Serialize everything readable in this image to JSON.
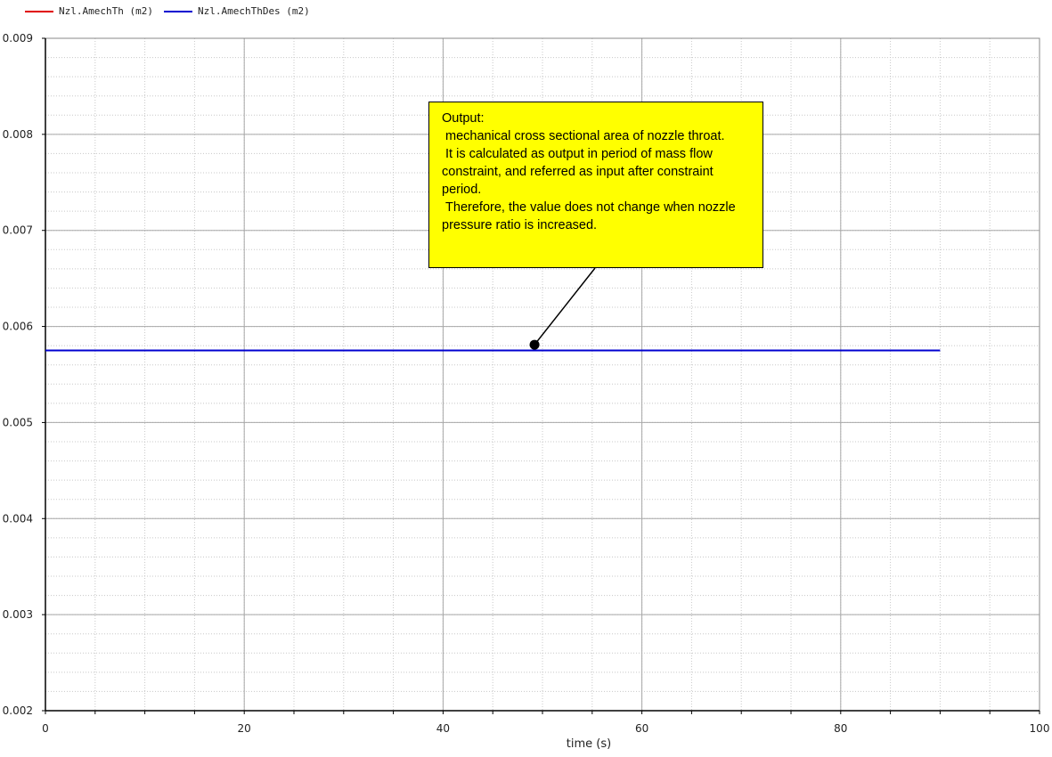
{
  "legend": [
    {
      "label": "Nzl.AmechTh (m2)",
      "color": "#e00000"
    },
    {
      "label": "Nzl.AmechThDes (m2)",
      "color": "#0000d0"
    }
  ],
  "annotation": {
    "text": "Output:\n mechanical cross sectional area of nozzle throat.\n It is calculated as output in period of mass flow constraint, and referred as input after constraint period.\n Therefore, the value does not change when nozzle pressure ratio is increased.",
    "target": {
      "x": 49.2,
      "y": 0.00581
    }
  },
  "chart_data": {
    "type": "line",
    "xlabel": "time (s)",
    "ylabel": "",
    "xlim": [
      0,
      100
    ],
    "ylim": [
      0.002,
      0.009
    ],
    "xticks": [
      0,
      20,
      40,
      60,
      80,
      100
    ],
    "xtick_labels": [
      "0",
      "20",
      "40",
      "60",
      "80",
      "100"
    ],
    "yticks": [
      0.002,
      0.003,
      0.004,
      0.005,
      0.006,
      0.007,
      0.008,
      0.009
    ],
    "ytick_labels": [
      "0.002",
      "0.003",
      "0.004",
      "0.005",
      "0.006",
      "0.007",
      "0.008",
      "0.009"
    ],
    "grid": true,
    "legend_position": "top-left",
    "series": [
      {
        "name": "Nzl.AmechThDes (m2)",
        "color": "#0000d0",
        "x": [
          0,
          90
        ],
        "y": [
          0.00575,
          0.00575
        ]
      }
    ]
  }
}
